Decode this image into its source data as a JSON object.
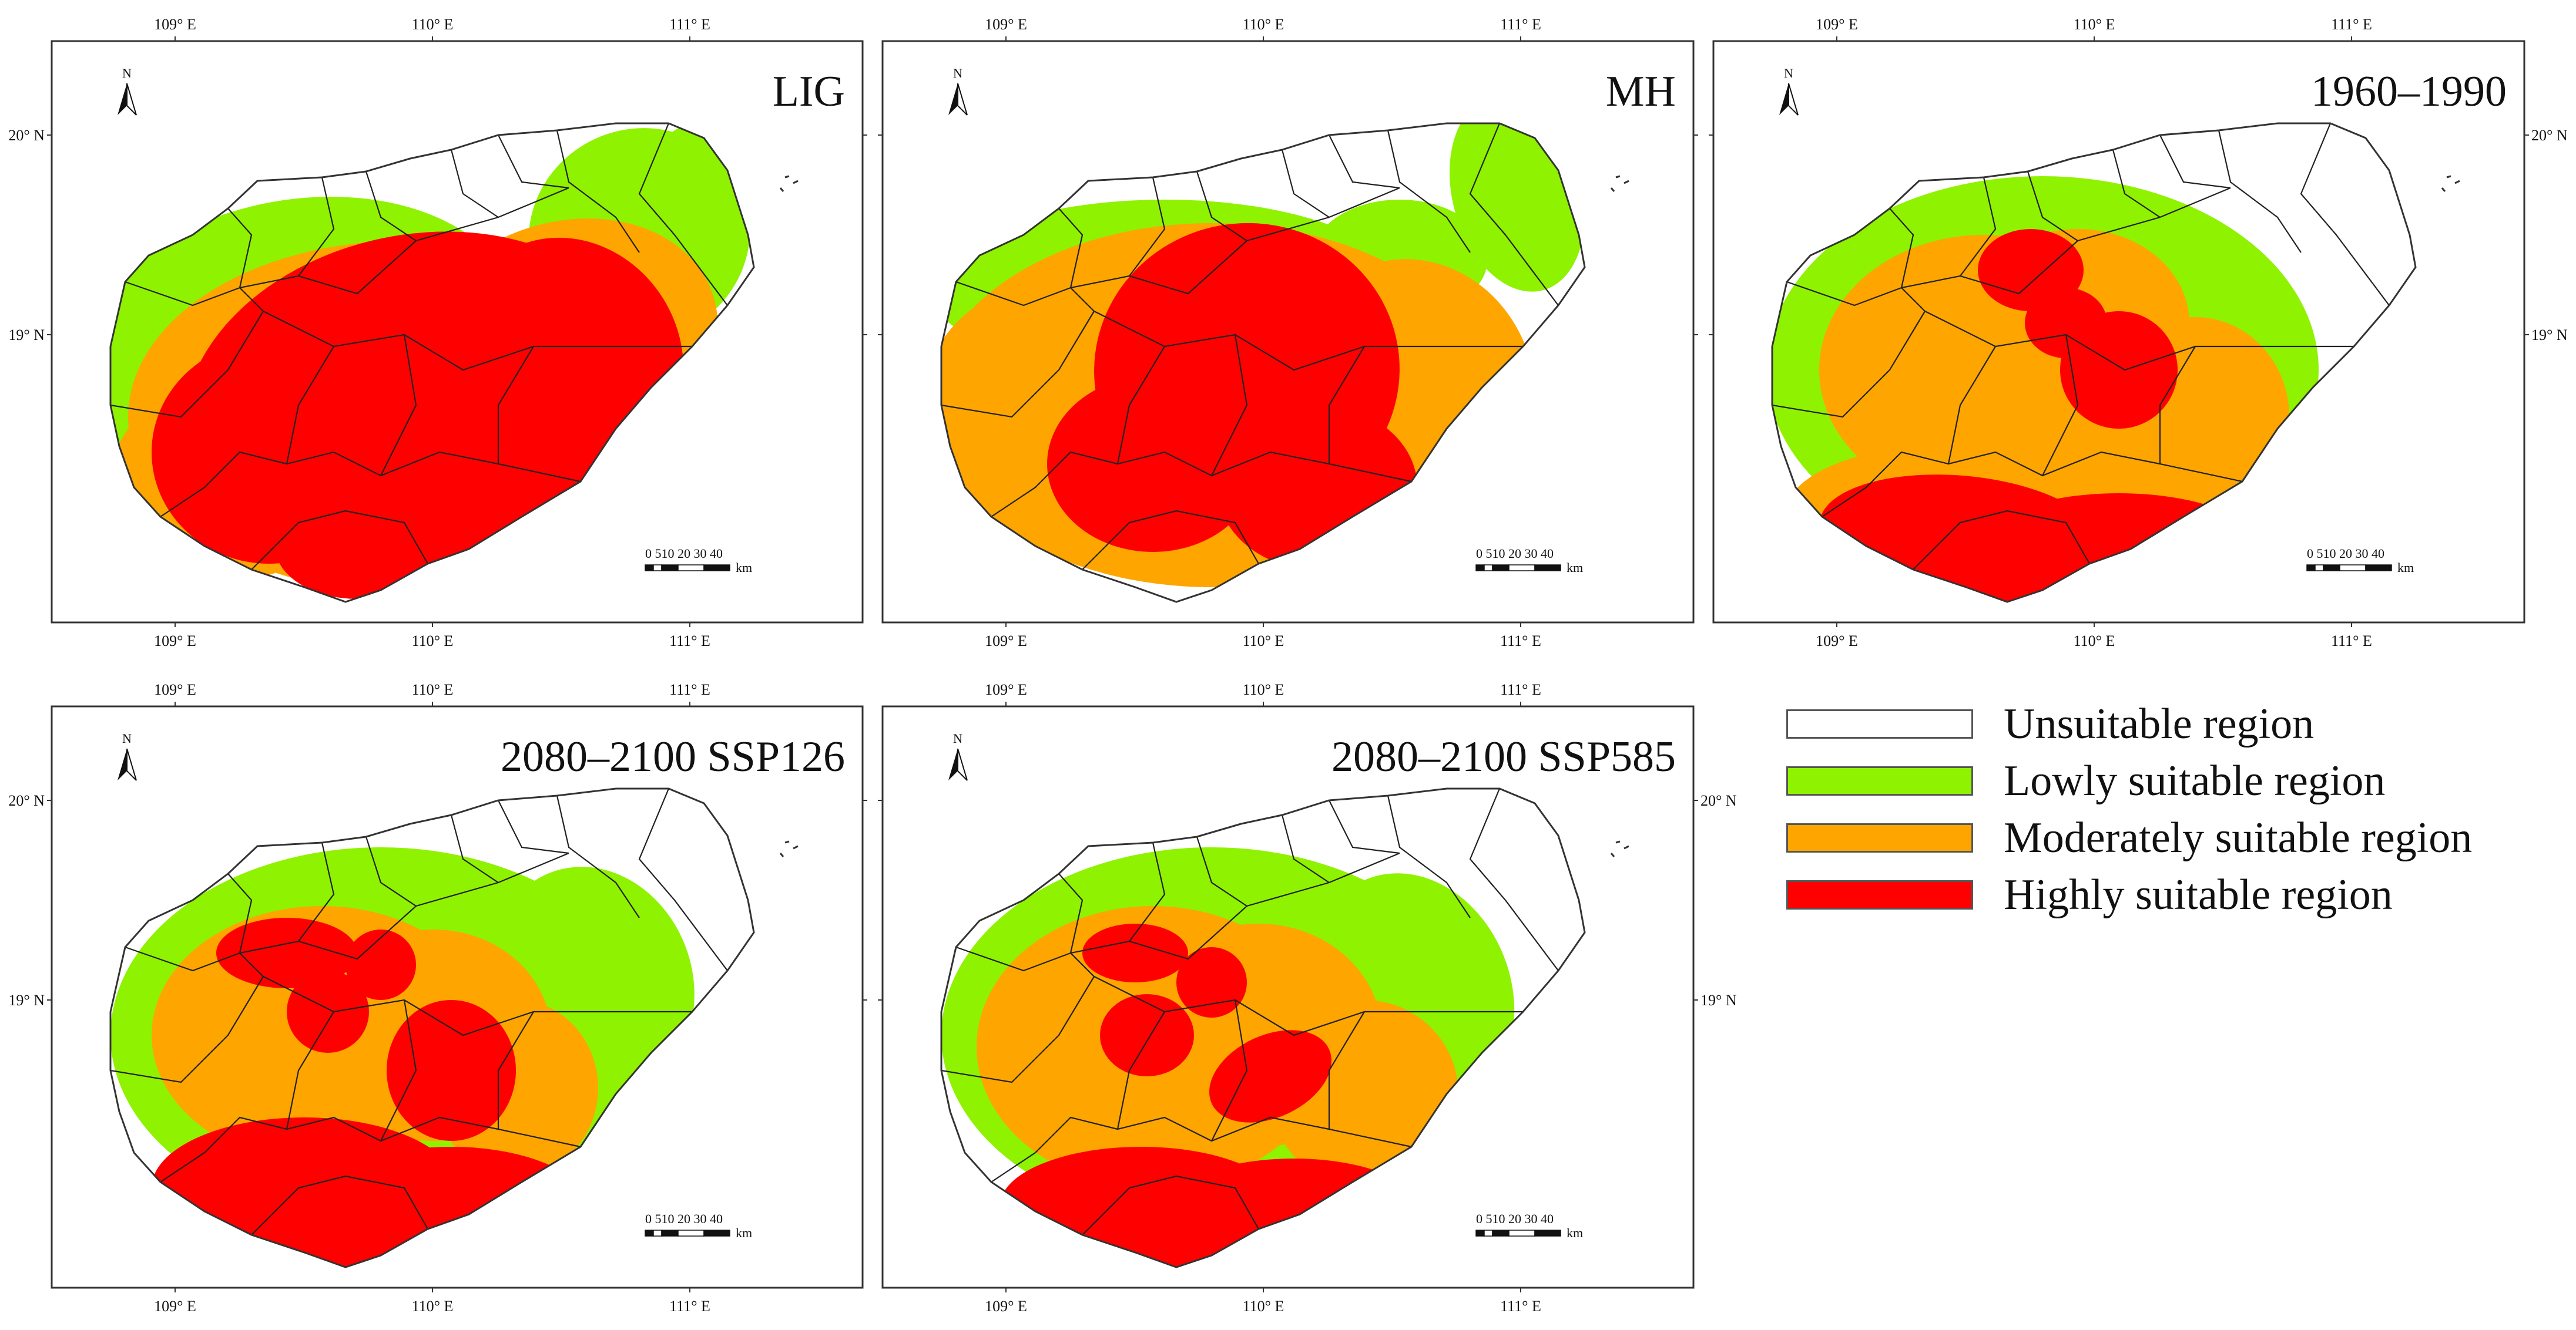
{
  "figure": {
    "panels": [
      {
        "title": "LIG"
      },
      {
        "title": "MH"
      },
      {
        "title": "1960–1990"
      },
      {
        "title": "2080–2100 SSP126"
      },
      {
        "title": "2080–2100 SSP585"
      }
    ],
    "longitude_ticks": [
      "109° E",
      "110° E",
      "111° E"
    ],
    "latitude_ticks": [
      "20° N",
      "19° N"
    ],
    "north_arrow_label": "N",
    "scale_bar": {
      "numbers": "0 510 20 30 40",
      "unit": "km"
    },
    "legend": [
      {
        "label": "Unsuitable region",
        "color": "#ffffff"
      },
      {
        "label": "Lowly suitable region",
        "color": "#8ff200"
      },
      {
        "label": "Moderately suitable region",
        "color": "#ffa500"
      },
      {
        "label": "Highly suitable region",
        "color": "#ff0000"
      }
    ]
  }
}
